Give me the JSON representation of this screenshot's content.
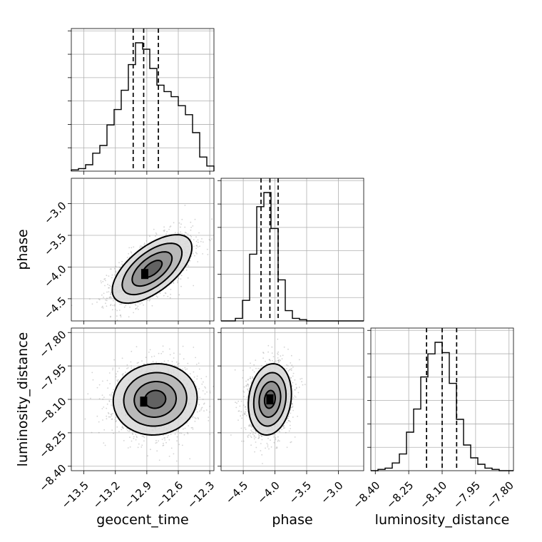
{
  "chart_data": {
    "type": "corner",
    "grid": true,
    "parameters": [
      {
        "name": "geocent_time",
        "xlabel": "geocent_time",
        "range": [
          -13.62,
          -12.26
        ],
        "ticks": [
          -13.5,
          -13.2,
          -12.9,
          -12.6,
          -12.3
        ],
        "tick_labels": [
          "−13.5",
          "−13.2",
          "−12.9",
          "−12.6",
          "−12.3"
        ],
        "bin_edges": [
          -13.62,
          -13.552,
          -13.484,
          -13.416,
          -13.348,
          -13.28,
          -13.212,
          -13.144,
          -13.076,
          -13.008,
          -12.94,
          -12.872,
          -12.804,
          -12.736,
          -12.668,
          -12.6,
          -12.532,
          -12.464,
          -12.396,
          -12.328,
          -12.26
        ],
        "counts": [
          0.01,
          0.02,
          0.05,
          0.14,
          0.2,
          0.36,
          0.48,
          0.63,
          0.83,
          1.0,
          0.95,
          0.8,
          0.67,
          0.62,
          0.58,
          0.51,
          0.44,
          0.3,
          0.11,
          0.04
        ],
        "quantiles": [
          -13.03,
          -12.93,
          -12.79
        ]
      },
      {
        "name": "phase",
        "xlabel": "phase",
        "ylabel": "phase",
        "range": [
          -4.85,
          -2.6
        ],
        "ticks": [
          -4.5,
          -4.0,
          -3.5,
          -3.0
        ],
        "tick_labels": [
          "−4.5",
          "−4.0",
          "−3.5",
          "−3.0"
        ],
        "bin_edges": [
          -4.85,
          -4.7375,
          -4.625,
          -4.5125,
          -4.4,
          -4.2875,
          -4.175,
          -4.0625,
          -3.95,
          -3.8375,
          -3.725,
          -3.6125,
          -3.5,
          -3.3875,
          -3.275,
          -3.1625,
          -3.05,
          -2.9375,
          -2.825,
          -2.7125,
          -2.6
        ],
        "counts": [
          0.0,
          0.0,
          0.02,
          0.16,
          0.52,
          0.89,
          1.0,
          0.72,
          0.32,
          0.08,
          0.02,
          0.01,
          0.0,
          0.0,
          0.0,
          0.0,
          0.0,
          0.0,
          0.0,
          0.0
        ],
        "quantiles": [
          -4.22,
          -4.08,
          -3.95
        ]
      },
      {
        "name": "luminosity_distance",
        "xlabel": "luminosity_distance",
        "ylabel": "luminosity_distance",
        "range": [
          -8.42,
          -7.78
        ],
        "ticks": [
          -8.4,
          -8.25,
          -8.1,
          -7.95,
          -7.8
        ],
        "tick_labels": [
          "−8.40",
          "−8.25",
          "−8.10",
          "−7.95",
          "−7.80"
        ],
        "bin_edges": [
          -8.42,
          -8.388,
          -8.356,
          -8.324,
          -8.292,
          -8.26,
          -8.228,
          -8.196,
          -8.164,
          -8.132,
          -8.1,
          -8.068,
          -8.036,
          -8.004,
          -7.972,
          -7.94,
          -7.908,
          -7.876,
          -7.844,
          -7.812,
          -7.78
        ],
        "counts": [
          0.0,
          0.01,
          0.02,
          0.06,
          0.13,
          0.3,
          0.48,
          0.73,
          0.91,
          1.0,
          0.92,
          0.68,
          0.4,
          0.2,
          0.1,
          0.05,
          0.02,
          0.01,
          0.0,
          0.0
        ],
        "quantiles": [
          -8.17,
          -8.1,
          -8.035
        ]
      }
    ],
    "pairs": [
      {
        "x": "geocent_time",
        "y": "phase",
        "mean": [
          -12.85,
          -4.03
        ],
        "std": [
          0.19,
          0.27
        ],
        "corr": 0.62,
        "peak": [
          -12.92,
          -4.11
        ],
        "contour_levels": [
          "0.118",
          "0.393",
          "0.675",
          "0.864"
        ]
      },
      {
        "x": "geocent_time",
        "y": "luminosity_distance",
        "mean": [
          -12.82,
          -8.1
        ],
        "std": [
          0.2,
          0.08
        ],
        "corr": 0.05,
        "peak": [
          -12.93,
          -8.11
        ],
        "contour_levels": [
          "0.118",
          "0.393",
          "0.675",
          "0.864"
        ]
      },
      {
        "x": "phase",
        "y": "luminosity_distance",
        "mean": [
          -4.08,
          -8.1
        ],
        "std": [
          0.17,
          0.08
        ],
        "corr": 0.15,
        "peak": [
          -4.08,
          -8.1
        ],
        "contour_levels": [
          "0.118",
          "0.393",
          "0.675",
          "0.864"
        ]
      }
    ]
  }
}
